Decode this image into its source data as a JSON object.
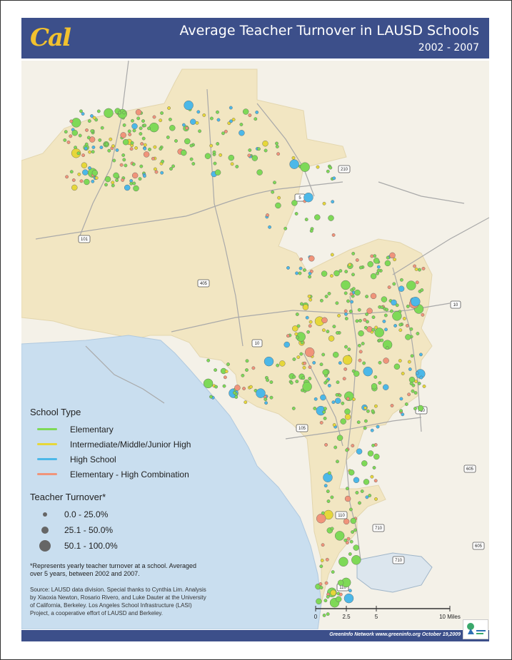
{
  "header": {
    "logo": "Cal",
    "title": "Average Teacher Turnover in LAUSD Schools",
    "years": "2002 - 2007"
  },
  "colors": {
    "header_bg": "#3c4f8a",
    "land": "#f4f1e8",
    "district": "#f2e6c2",
    "ocean": "#c9deef",
    "elementary": "#7ed957",
    "intermediate": "#e6d73a",
    "high_school": "#4cb8e8",
    "combination": "#f0947a"
  },
  "highways": [
    "210",
    "5",
    "101",
    "405",
    "10",
    "10",
    "110",
    "105",
    "710",
    "605",
    "110",
    "710",
    "605",
    "710"
  ],
  "legend": {
    "school_type_title": "School Type",
    "types": [
      {
        "label": "Elementary",
        "color": "#7ed957"
      },
      {
        "label": "Intermediate/Middle/Junior High",
        "color": "#e6d73a"
      },
      {
        "label": "High School",
        "color": "#4cb8e8"
      },
      {
        "label": "Elementary - High Combination",
        "color": "#f0947a"
      }
    ],
    "turnover_title": "Teacher Turnover*",
    "turnover": [
      {
        "label": "0.0 - 25.0%",
        "level": 1
      },
      {
        "label": "25.1 - 50.0%",
        "level": 2
      },
      {
        "label": "50.1 - 100.0%",
        "level": 3
      }
    ]
  },
  "note": "*Represents yearly teacher turnover at a school. Averaged over 5 years, between 2002 and 2007.",
  "source": "Source: LAUSD data division. Special thanks to Cynthia Lim. Analysis by Xiaoxia Newton, Rosario Rivero, and Luke Dauter at the University of California, Berkeley. Los Angeles School Infrastructure (LASI) Project, a cooperative effort of LAUSD and Berkeley.",
  "scale": {
    "ticks": [
      "0",
      "2.5",
      "5",
      "10 Miles"
    ]
  },
  "footer": {
    "credit": "GreenInfo Network  www.greeninfo.org  October 19,2009"
  }
}
